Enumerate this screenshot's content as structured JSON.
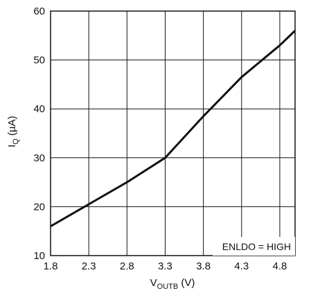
{
  "chart_data": {
    "type": "line",
    "title": "",
    "xlabel": {
      "main": "V",
      "sub": "OUTB",
      "unit": " (V)"
    },
    "ylabel": {
      "main": "I",
      "sub": "Q",
      "unit": " (µA)"
    },
    "xlim": [
      1.8,
      5.0
    ],
    "ylim": [
      10,
      60
    ],
    "x_ticks": [
      1.8,
      2.3,
      2.8,
      3.3,
      3.8,
      4.3,
      4.8
    ],
    "y_ticks": [
      10,
      20,
      30,
      40,
      50,
      60
    ],
    "x_tick_labels": [
      "1.8",
      "2.3",
      "2.8",
      "3.3",
      "3.8",
      "4.3",
      "4.8"
    ],
    "y_tick_labels": [
      "10",
      "20",
      "30",
      "40",
      "50",
      "60"
    ],
    "grid": true,
    "annotation": "ENLDO = HIGH",
    "series": [
      {
        "x": [
          1.8,
          2.3,
          2.8,
          3.3,
          3.8,
          4.3,
          4.8,
          5.0
        ],
        "y": [
          16,
          20.5,
          25,
          30,
          38.5,
          46.5,
          53,
          56
        ]
      }
    ]
  }
}
